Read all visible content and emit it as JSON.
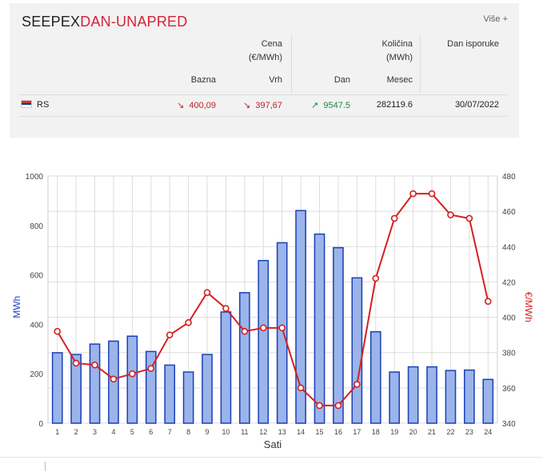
{
  "panel": {
    "title_part1": "SEEPEX",
    "title_part2": "DAN-UNAPRED",
    "more_label": "Više +",
    "headers": {
      "cena": "Cena",
      "cena_unit": "(€/MWh)",
      "kolicina": "Količina",
      "kolicina_unit": "(MWh)",
      "dan_isporuke": "Dan isporuke",
      "bazna": "Bazna",
      "vrh": "Vrh",
      "dan": "Dan",
      "mesec": "Mesec"
    },
    "row": {
      "market": "RS",
      "bazna": "400,09",
      "bazna_trend": "↘",
      "vrh": "397,67",
      "vrh_trend": "↘",
      "dan": "9547.5",
      "dan_trend": "↗",
      "mesec": "282119.6",
      "date": "30/07/2022"
    }
  },
  "chart_data": {
    "type": "bar+line",
    "xlabel": "Sati",
    "ylabel_left": "MWh",
    "ylabel_right": "€/MWh",
    "categories": [
      "1",
      "2",
      "3",
      "4",
      "5",
      "6",
      "7",
      "8",
      "9",
      "10",
      "11",
      "12",
      "13",
      "14",
      "15",
      "16",
      "17",
      "18",
      "19",
      "20",
      "21",
      "22",
      "23",
      "24"
    ],
    "y_left_range": [
      0,
      1000
    ],
    "y_left_ticks": [
      "0",
      "200",
      "400",
      "600",
      "800",
      "1000"
    ],
    "y_right_range": [
      340,
      480
    ],
    "y_right_ticks": [
      "340",
      "360",
      "380",
      "400",
      "420",
      "440",
      "460",
      "480"
    ],
    "bar_values": [
      285,
      278,
      320,
      332,
      352,
      290,
      235,
      207,
      278,
      450,
      528,
      658,
      730,
      860,
      765,
      710,
      588,
      370,
      207,
      228,
      228,
      213,
      215,
      177
    ],
    "line_values": [
      392,
      374,
      373,
      365,
      368,
      371,
      390,
      397,
      414,
      405,
      392,
      394,
      394,
      360,
      350,
      350,
      362,
      422,
      456,
      470,
      470,
      458,
      456,
      409
    ],
    "grid": true,
    "colors": {
      "bar_fill": "#9bb4ea",
      "bar_stroke": "#1a3fb8",
      "line": "#d42020",
      "axis_left_label": "#1f3fc4",
      "axis_right_label": "#d42020"
    }
  }
}
